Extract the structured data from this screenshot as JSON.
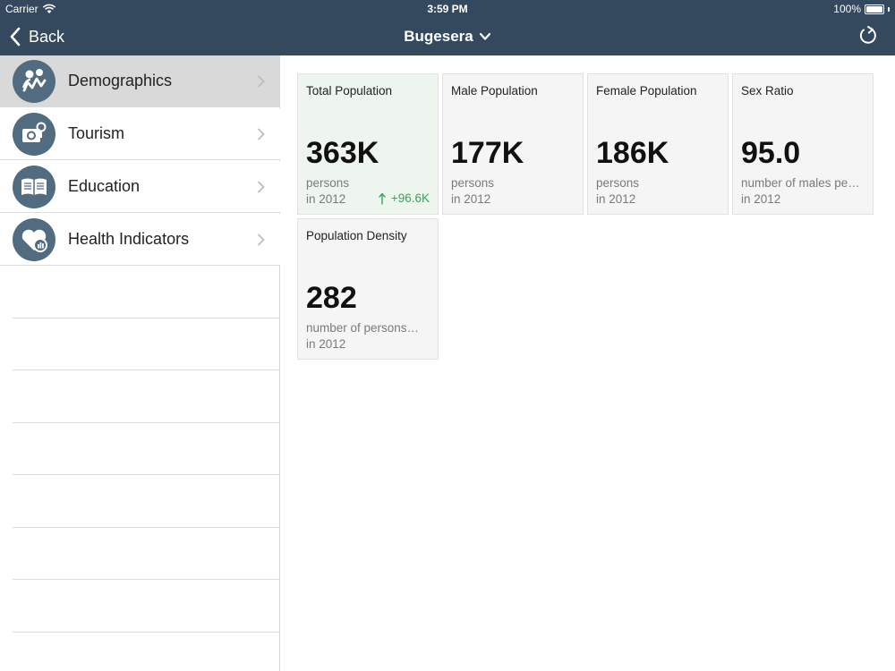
{
  "status_bar": {
    "carrier": "Carrier",
    "time": "3:59 PM",
    "battery": "100%",
    "battery_level": 1.0
  },
  "nav": {
    "back_label": "Back",
    "title": "Bugesera",
    "title_icon": "chevron-down-icon",
    "refresh_icon": "refresh-icon"
  },
  "sidebar": {
    "items": [
      {
        "label": "Demographics",
        "icon": "demographics-icon",
        "selected": true
      },
      {
        "label": "Tourism",
        "icon": "camera-icon",
        "selected": false
      },
      {
        "label": "Education",
        "icon": "book-icon",
        "selected": false
      },
      {
        "label": "Health Indicators",
        "icon": "health-heart-icon",
        "selected": false
      }
    ]
  },
  "cards": [
    {
      "title": "Total Population",
      "value": "363K",
      "unit": "persons",
      "year": "in 2012",
      "change": "+96.6K",
      "highlight": true
    },
    {
      "title": "Male Population",
      "value": "177K",
      "unit": "persons",
      "year": "in 2012"
    },
    {
      "title": "Female Population",
      "value": "186K",
      "unit": "persons",
      "year": "in 2012"
    },
    {
      "title": "Sex Ratio",
      "value": "95.0",
      "unit": "number of males pe…",
      "year": "in 2012"
    },
    {
      "title": "Population Density",
      "value": "282",
      "unit": "number of persons…",
      "year": "in 2012"
    }
  ],
  "colors": {
    "nav_bg": "#34495e",
    "icon_bg": "#516b81",
    "selected_row": "#d9d9d9",
    "highlight_card": "#eef5ee",
    "positive_change": "#3aa35c"
  }
}
